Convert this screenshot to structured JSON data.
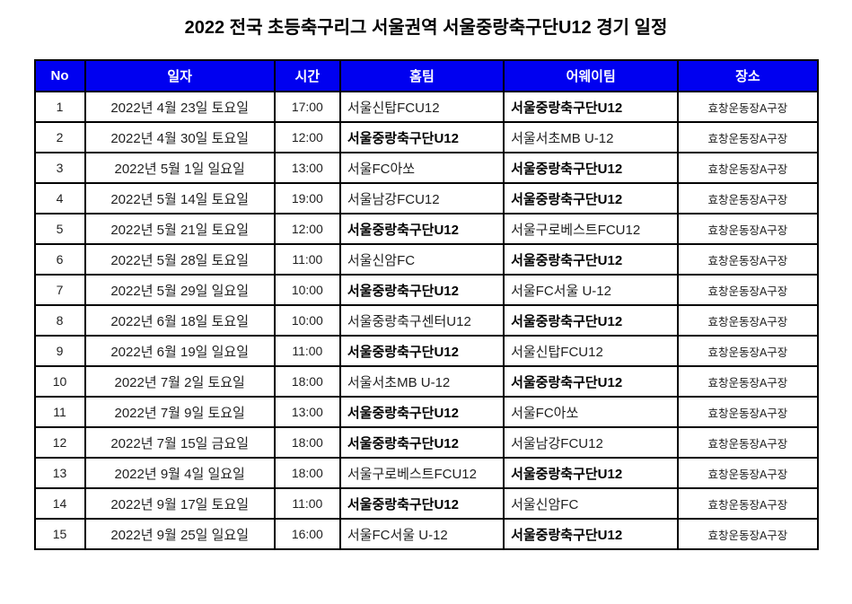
{
  "page_title": "2022 전국 초등축구리그 서울권역 서울중랑축구단U12 경기 일정",
  "highlight_team": "서울중랑축구단U12",
  "colors": {
    "header_bg": "#0000F0",
    "header_text": "#FFFFFF",
    "border": "#000000",
    "page_bg": "#FFFFFF"
  },
  "table": {
    "columns": [
      {
        "key": "no",
        "label": "No"
      },
      {
        "key": "date",
        "label": "일자"
      },
      {
        "key": "time",
        "label": "시간"
      },
      {
        "key": "home",
        "label": "홈팀"
      },
      {
        "key": "away",
        "label": "어웨이팀"
      },
      {
        "key": "venue",
        "label": "장소"
      }
    ],
    "rows": [
      {
        "no": "1",
        "date": "2022년 4월 23일 토요일",
        "time": "17:00",
        "home": "서울신탑FCU12",
        "away": "서울중랑축구단U12",
        "venue": "효창운동장A구장"
      },
      {
        "no": "2",
        "date": "2022년 4월 30일 토요일",
        "time": "12:00",
        "home": "서울중랑축구단U12",
        "away": "서울서초MB U-12",
        "venue": "효창운동장A구장"
      },
      {
        "no": "3",
        "date": "2022년 5월 1일 일요일",
        "time": "13:00",
        "home": "서울FC아쏘",
        "away": "서울중랑축구단U12",
        "venue": "효창운동장A구장"
      },
      {
        "no": "4",
        "date": "2022년 5월 14일 토요일",
        "time": "19:00",
        "home": "서울남강FCU12",
        "away": "서울중랑축구단U12",
        "venue": "효창운동장A구장"
      },
      {
        "no": "5",
        "date": "2022년 5월 21일 토요일",
        "time": "12:00",
        "home": "서울중랑축구단U12",
        "away": "서울구로베스트FCU12",
        "venue": "효창운동장A구장"
      },
      {
        "no": "6",
        "date": "2022년 5월 28일 토요일",
        "time": "11:00",
        "home": "서울신암FC",
        "away": "서울중랑축구단U12",
        "venue": "효창운동장A구장"
      },
      {
        "no": "7",
        "date": "2022년 5월 29일 일요일",
        "time": "10:00",
        "home": "서울중랑축구단U12",
        "away": "서울FC서울 U-12",
        "venue": "효창운동장A구장"
      },
      {
        "no": "8",
        "date": "2022년 6월 18일 토요일",
        "time": "10:00",
        "home": "서울중랑축구센터U12",
        "away": "서울중랑축구단U12",
        "venue": "효창운동장A구장"
      },
      {
        "no": "9",
        "date": "2022년 6월 19일 일요일",
        "time": "11:00",
        "home": "서울중랑축구단U12",
        "away": "서울신탑FCU12",
        "venue": "효창운동장A구장"
      },
      {
        "no": "10",
        "date": "2022년 7월 2일 토요일",
        "time": "18:00",
        "home": "서울서초MB U-12",
        "away": "서울중랑축구단U12",
        "venue": "효창운동장A구장"
      },
      {
        "no": "11",
        "date": "2022년 7월 9일 토요일",
        "time": "13:00",
        "home": "서울중랑축구단U12",
        "away": "서울FC아쏘",
        "venue": "효창운동장A구장"
      },
      {
        "no": "12",
        "date": "2022년 7월 15일 금요일",
        "time": "18:00",
        "home": "서울중랑축구단U12",
        "away": "서울남강FCU12",
        "venue": "효창운동장A구장"
      },
      {
        "no": "13",
        "date": "2022년 9월 4일 일요일",
        "time": "18:00",
        "home": "서울구로베스트FCU12",
        "away": "서울중랑축구단U12",
        "venue": "효창운동장A구장"
      },
      {
        "no": "14",
        "date": "2022년 9월 17일 토요일",
        "time": "11:00",
        "home": "서울중랑축구단U12",
        "away": "서울신암FC",
        "venue": "효창운동장A구장"
      },
      {
        "no": "15",
        "date": "2022년 9월 25일 일요일",
        "time": "16:00",
        "home": "서울FC서울 U-12",
        "away": "서울중랑축구단U12",
        "venue": "효창운동장A구장"
      }
    ]
  }
}
